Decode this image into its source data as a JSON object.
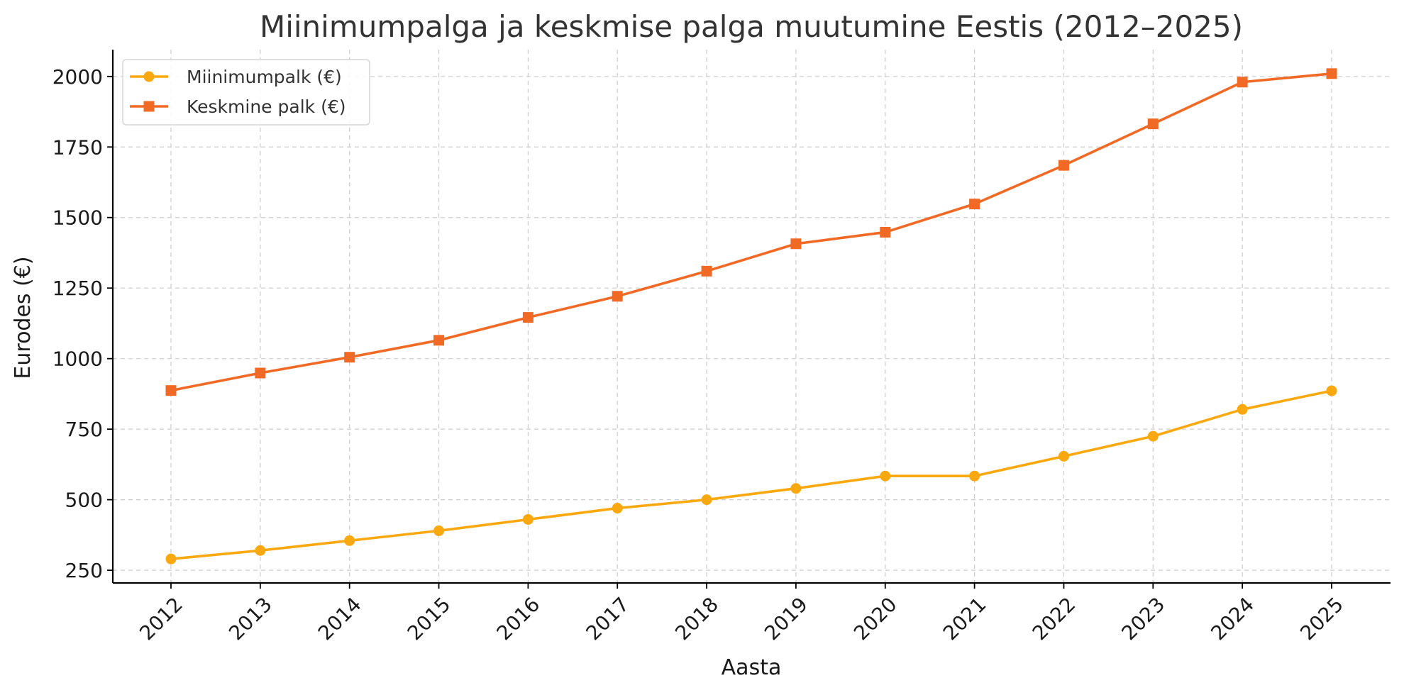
{
  "chart_data": {
    "type": "line",
    "title": "Miinimumpalga ja keskmise palga muutumine Eestis (2012–2025)",
    "xlabel": "Aasta",
    "ylabel": "Eurodes (€)",
    "x": [
      "2012",
      "2013",
      "2014",
      "2015",
      "2016",
      "2017",
      "2018",
      "2019",
      "2020",
      "2021",
      "2022",
      "2023",
      "2024",
      "2025"
    ],
    "yticks": [
      250,
      500,
      750,
      1000,
      1250,
      1500,
      1750,
      2000
    ],
    "ylim": [
      205,
      2095
    ],
    "grid": true,
    "legend_position": "top-left",
    "series": [
      {
        "name": "Miinimumpalk (€)",
        "color": "#f9a90f",
        "marker": "circle",
        "values": [
          290,
          320,
          355,
          390,
          430,
          470,
          500,
          540,
          584,
          584,
          654,
          725,
          820,
          886
        ]
      },
      {
        "name": "Keskmine palk (€)",
        "color": "#f06a25",
        "marker": "square",
        "values": [
          887,
          949,
          1005,
          1065,
          1146,
          1221,
          1310,
          1407,
          1448,
          1548,
          1685,
          1832,
          1980,
          2010
        ]
      }
    ]
  }
}
